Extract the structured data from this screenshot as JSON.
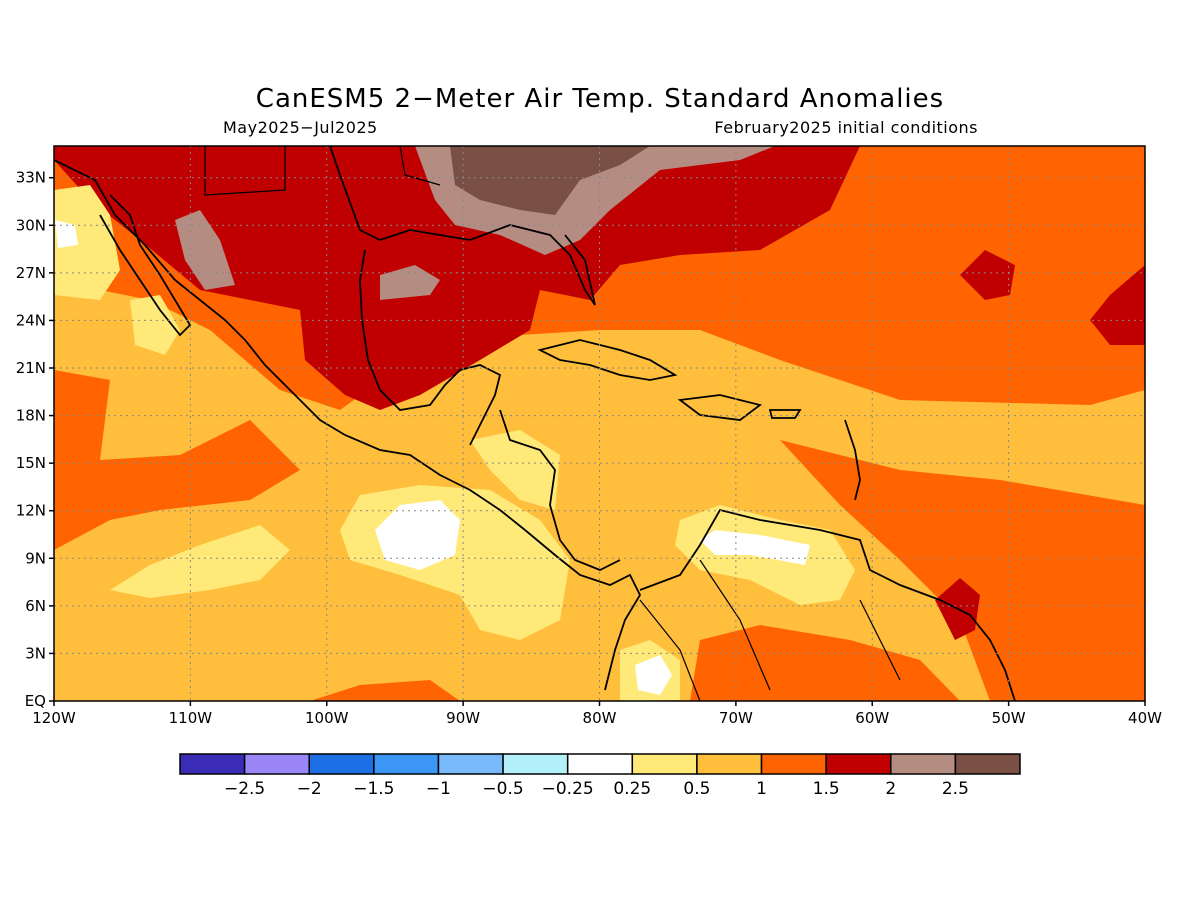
{
  "title": "CanESM5 2−Meter Air Temp. Standard Anomalies",
  "subtitle_left": "May2025−Jul2025",
  "subtitle_right": "February2025 initial conditions",
  "map": {
    "lon_range": [
      -120,
      -40
    ],
    "lat_range": [
      0,
      35
    ],
    "x_ticks": [
      {
        "value": -120,
        "label": "120W"
      },
      {
        "value": -110,
        "label": "110W"
      },
      {
        "value": -100,
        "label": "100W"
      },
      {
        "value": -90,
        "label": "90W"
      },
      {
        "value": -80,
        "label": "80W"
      },
      {
        "value": -70,
        "label": "70W"
      },
      {
        "value": -60,
        "label": "60W"
      },
      {
        "value": -50,
        "label": "50W"
      },
      {
        "value": -40,
        "label": "40W"
      }
    ],
    "y_ticks": [
      {
        "value": 0,
        "label": "EQ"
      },
      {
        "value": 3,
        "label": "3N"
      },
      {
        "value": 6,
        "label": "6N"
      },
      {
        "value": 9,
        "label": "9N"
      },
      {
        "value": 12,
        "label": "12N"
      },
      {
        "value": 15,
        "label": "15N"
      },
      {
        "value": 18,
        "label": "18N"
      },
      {
        "value": 21,
        "label": "21N"
      },
      {
        "value": 24,
        "label": "24N"
      },
      {
        "value": 27,
        "label": "27N"
      },
      {
        "value": 30,
        "label": "30N"
      },
      {
        "value": 33,
        "label": "33N"
      }
    ],
    "grid": "dotted"
  },
  "colorbar": {
    "colors": [
      "#3a2cb4",
      "#9b86f5",
      "#1e6ee6",
      "#3c96f5",
      "#78b9fa",
      "#b4f0fa",
      "#ffffff",
      "#ffe978",
      "#ffbe3c",
      "#ff6400",
      "#c00000",
      "#b48c82",
      "#7a4f46"
    ],
    "labels": [
      "−2.5",
      "−2",
      "−1.5",
      "−1",
      "−0.5",
      "−0.25",
      "0.25",
      "0.5",
      "1",
      "1.5",
      "2",
      "2.5"
    ]
  }
}
